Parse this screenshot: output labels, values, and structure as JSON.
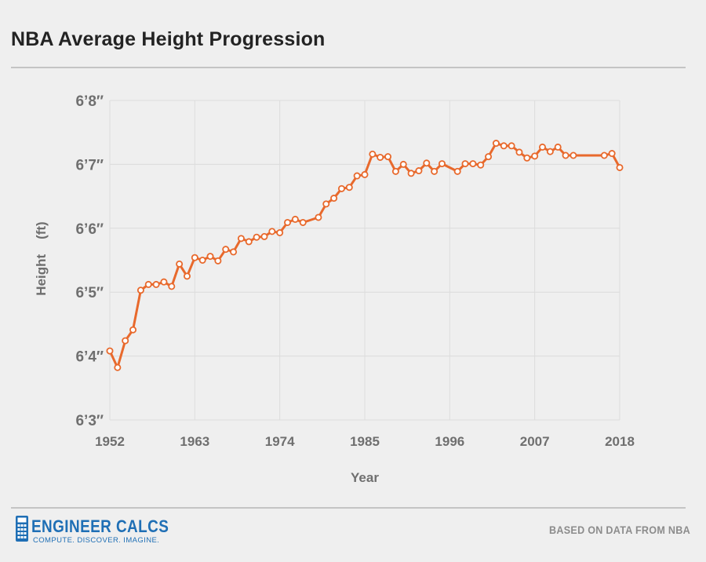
{
  "page": {
    "title": "NBA Average Height Progression",
    "brand_name": "ENGINEER CALCS",
    "brand_tagline": "COMPUTE. DISCOVER. IMAGINE.",
    "source_note": "BASED ON DATA FROM NBA",
    "logo_icon": "calculator-icon"
  },
  "colors": {
    "background": "#efefef",
    "line": "#e8692c",
    "marker_fill": "#ffffff",
    "grid": "#dcdcdc",
    "tick_text": "#6f6f6f",
    "brand": "#1f6fb5"
  },
  "chart_data": {
    "type": "line",
    "title": "NBA Average Height Progression",
    "xlabel": "Year",
    "ylabel": "Height    (ft)",
    "ylabel_parts": [
      "Height",
      "(ft)"
    ],
    "xlim": [
      1952,
      2018
    ],
    "ylim": [
      75,
      80
    ],
    "x_ticks": [
      1952,
      1963,
      1974,
      1985,
      1996,
      2007,
      2018
    ],
    "y_ticks": [
      {
        "value": 75,
        "label": "6’3″"
      },
      {
        "value": 76,
        "label": "6’4″"
      },
      {
        "value": 77,
        "label": "6’5″"
      },
      {
        "value": 78,
        "label": "6’6″"
      },
      {
        "value": 79,
        "label": "6’7″"
      },
      {
        "value": 80,
        "label": "6’8″"
      }
    ],
    "grid": true,
    "legend": false,
    "series": [
      {
        "x": [
          1952,
          1953,
          1954,
          1955,
          1956,
          1957,
          1958,
          1959,
          1960,
          1961,
          1962,
          1963,
          1964,
          1965,
          1966,
          1967,
          1968,
          1969,
          1970,
          1971,
          1972,
          1973,
          1974,
          1975,
          1976,
          1977,
          1979,
          1980,
          1981,
          1982,
          1983,
          1984,
          1985,
          1986,
          1987,
          1988,
          1989,
          1990,
          1991,
          1992,
          1993,
          1994,
          1995,
          1997,
          1998,
          1999,
          2000,
          2001,
          2002,
          2003,
          2004,
          2005,
          2006,
          2007,
          2008,
          2009,
          2010,
          2011,
          2012,
          2016,
          2017,
          2018
        ],
        "values": [
          76.08,
          75.82,
          76.24,
          76.41,
          77.03,
          77.12,
          77.12,
          77.16,
          77.09,
          77.44,
          77.25,
          77.54,
          77.5,
          77.56,
          77.49,
          77.67,
          77.63,
          77.84,
          77.79,
          77.86,
          77.87,
          77.95,
          77.93,
          78.09,
          78.14,
          78.09,
          78.17,
          78.38,
          78.47,
          78.62,
          78.64,
          78.82,
          78.84,
          79.16,
          79.11,
          79.12,
          78.89,
          79.0,
          78.86,
          78.9,
          79.02,
          78.89,
          79.01,
          78.89,
          79.01,
          79.01,
          78.99,
          79.12,
          79.33,
          79.29,
          79.29,
          79.19,
          79.1,
          79.13,
          79.27,
          79.2,
          79.27,
          79.14,
          79.14,
          79.14,
          79.17,
          78.95
        ]
      }
    ]
  }
}
